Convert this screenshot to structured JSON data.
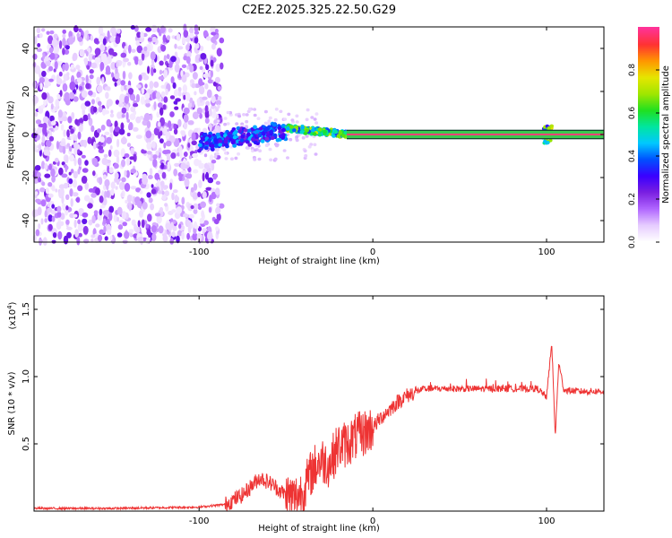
{
  "title": "C2E2.2025.325.22.50.G29",
  "chart_data": [
    {
      "type": "heatmap",
      "name": "spectrogram",
      "xlabel": "Height of straight line (km)",
      "ylabel": "Frequency (Hz)",
      "xlim": [
        -195,
        133
      ],
      "ylim": [
        -50,
        50
      ],
      "xticks": [
        -100,
        0,
        100
      ],
      "yticks": [
        -40,
        -20,
        0,
        20,
        40
      ],
      "grid": false,
      "colorbar": {
        "label": "Normalized spectral amplitude",
        "range": [
          0,
          1
        ],
        "ticks": [
          0.0,
          0.2,
          0.4,
          0.6,
          0.8
        ],
        "colors": [
          "#ffffff",
          "#e6ccff",
          "#b066ff",
          "#7a1fe0",
          "#3a00ff",
          "#0050ff",
          "#00c8ff",
          "#00e6a0",
          "#20e020",
          "#a0e600",
          "#e6e600",
          "#ff9600",
          "#ff3232",
          "#ff3296"
        ]
      },
      "regions": [
        {
          "description": "broadband noise",
          "x": [
            -195,
            -87
          ],
          "freq": [
            -50,
            50
          ],
          "amplitude": [
            0.02,
            0.2
          ]
        },
        {
          "description": "signal emergence",
          "x": [
            -100,
            -50
          ],
          "freq_center": [
            -4,
            3
          ],
          "amplitude": [
            0.2,
            0.5
          ]
        },
        {
          "description": "stable tone",
          "x": [
            -50,
            133
          ],
          "freq_center": [
            3,
            0
          ],
          "amplitude": [
            0.5,
            1.0
          ]
        },
        {
          "description": "spike",
          "x": [
            98,
            103
          ],
          "freq": [
            -4,
            4
          ],
          "amplitude": [
            0.5,
            0.8
          ]
        }
      ],
      "tone_band": [
        -1,
        1
      ]
    },
    {
      "type": "line",
      "name": "snr",
      "xlabel": "Height of straight line (km)",
      "ylabel": "SNR (10 * v/v)",
      "scale_label": "(x10",
      "scale_exponent": "4",
      "xlim": [
        -195,
        133
      ],
      "ylim": [
        0,
        1.6
      ],
      "xticks": [
        -100,
        0,
        100
      ],
      "yticks": [
        0.5,
        1.0,
        1.5
      ],
      "color": "#ee3333",
      "series": [
        {
          "name": "SNR",
          "x": [
            -195,
            -150,
            -100,
            -85,
            -75,
            -65,
            -58,
            -50,
            -45,
            -40,
            -35,
            -30,
            -25,
            -20,
            -15,
            -10,
            -5,
            0,
            5,
            10,
            15,
            20,
            25,
            30,
            40,
            60,
            80,
            95,
            100,
            103,
            105,
            107,
            110,
            120,
            133
          ],
          "values": [
            0.02,
            0.02,
            0.03,
            0.05,
            0.12,
            0.25,
            0.2,
            0.12,
            0.1,
            0.15,
            0.3,
            0.38,
            0.35,
            0.48,
            0.5,
            0.55,
            0.58,
            0.62,
            0.7,
            0.76,
            0.82,
            0.86,
            0.89,
            0.91,
            0.91,
            0.91,
            0.91,
            0.91,
            0.85,
            1.25,
            0.55,
            1.1,
            0.9,
            0.89,
            0.89
          ]
        }
      ]
    }
  ]
}
